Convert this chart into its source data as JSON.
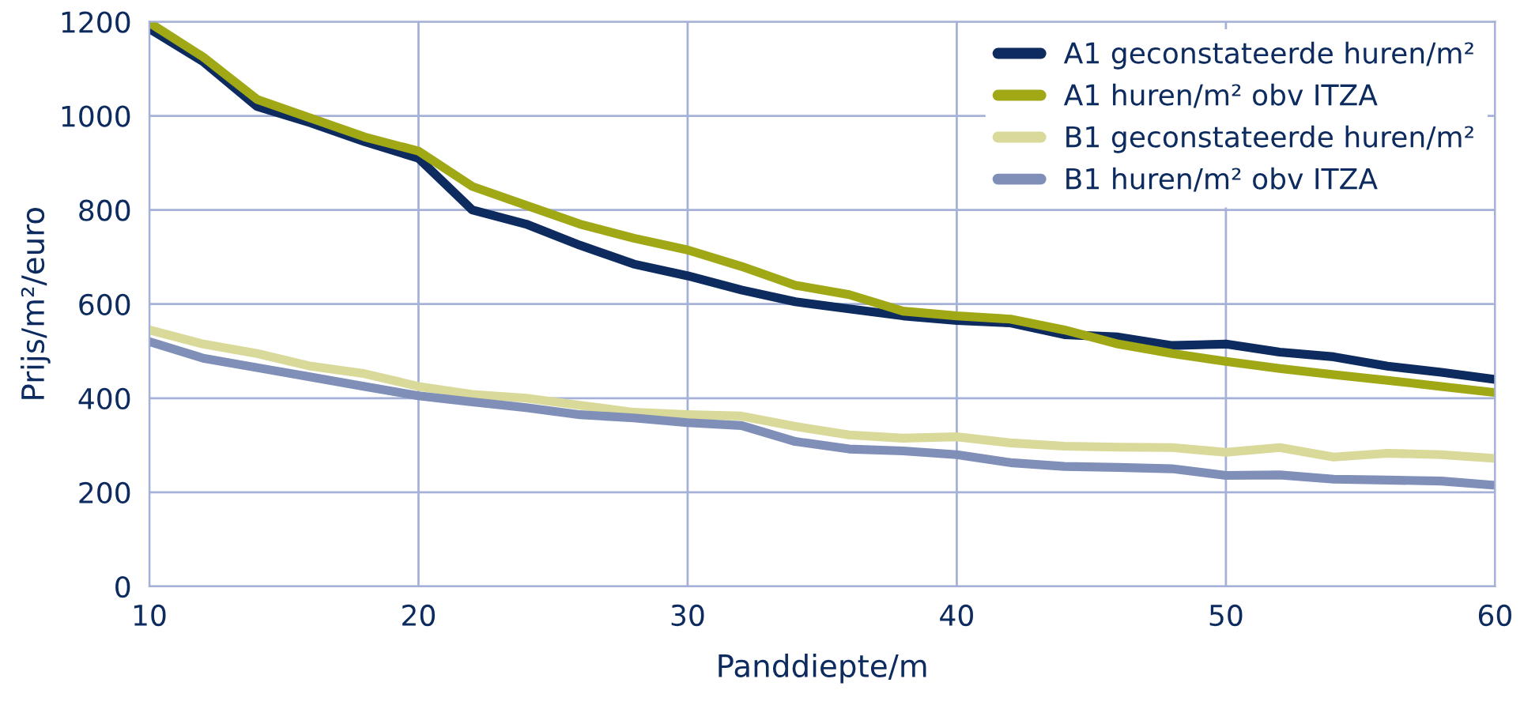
{
  "chart_data": {
    "type": "line",
    "xlabel": "Panddiepte/m",
    "ylabel": "Prijs/m²/euro",
    "x": [
      10,
      12,
      14,
      16,
      18,
      20,
      22,
      24,
      26,
      28,
      30,
      32,
      34,
      36,
      38,
      40,
      42,
      44,
      46,
      48,
      50,
      52,
      54,
      56,
      58,
      60
    ],
    "series": [
      {
        "name": "A1 geconstateerde huren/m²",
        "color": "#0d2b5e",
        "values": [
          1185,
          1115,
          1020,
          985,
          945,
          910,
          800,
          770,
          725,
          685,
          660,
          630,
          605,
          590,
          575,
          565,
          560,
          535,
          530,
          512,
          515,
          498,
          488,
          468,
          455,
          440
        ]
      },
      {
        "name": "A1 huren/m² obv ITZA",
        "color": "#a0a816",
        "values": [
          1198,
          1125,
          1035,
          995,
          955,
          925,
          850,
          810,
          770,
          740,
          715,
          680,
          640,
          620,
          585,
          575,
          568,
          545,
          515,
          495,
          478,
          463,
          450,
          438,
          425,
          412
        ]
      },
      {
        "name": "B1 geconstateerde huren/m²",
        "color": "#d9d99a",
        "values": [
          545,
          515,
          495,
          468,
          452,
          425,
          408,
          400,
          385,
          370,
          365,
          362,
          340,
          322,
          315,
          318,
          305,
          298,
          296,
          295,
          285,
          295,
          275,
          283,
          280,
          272
        ]
      },
      {
        "name": "B1 huren/m² obv ITZA",
        "color": "#7f8fb8",
        "values": [
          520,
          485,
          465,
          445,
          425,
          405,
          392,
          380,
          365,
          358,
          348,
          342,
          308,
          292,
          288,
          280,
          263,
          255,
          253,
          250,
          236,
          237,
          228,
          226,
          224,
          215
        ]
      }
    ],
    "xlim": [
      10,
      60
    ],
    "ylim": [
      0,
      1200
    ],
    "xticks": [
      10,
      20,
      30,
      40,
      50,
      60
    ],
    "yticks": [
      0,
      200,
      400,
      600,
      800,
      1000,
      1200
    ],
    "grid": true,
    "legend": "top right",
    "marker": "none",
    "line_style": "solid"
  }
}
